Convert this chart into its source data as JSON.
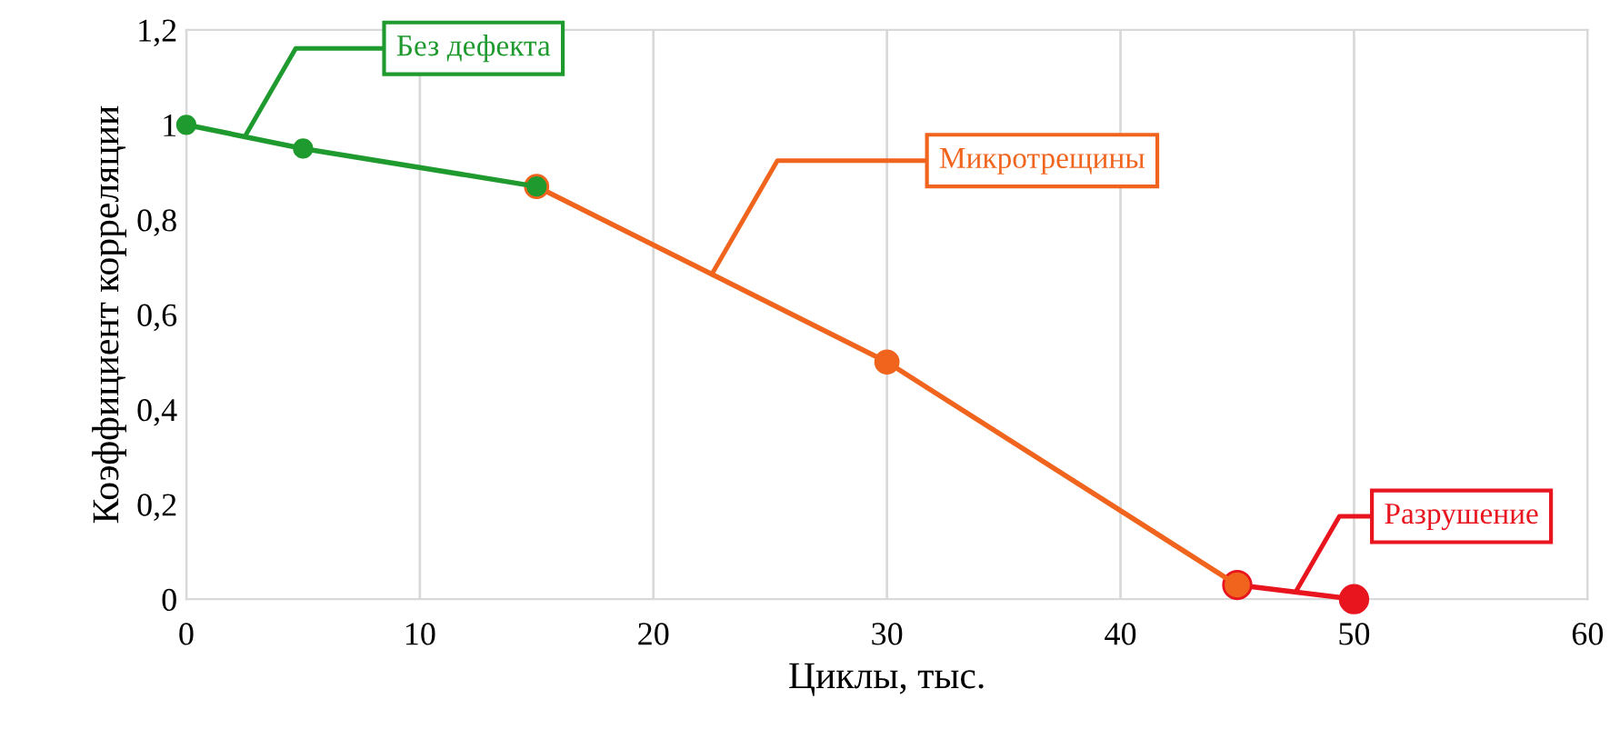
{
  "chart_data": {
    "type": "line",
    "xlabel": "Циклы, тыс.",
    "ylabel": "Коэффициент корреляции",
    "xlim": [
      0,
      60
    ],
    "xticks": [
      0,
      10,
      20,
      30,
      40,
      50,
      60
    ],
    "ylim": [
      0,
      1.2
    ],
    "yticks": [
      0,
      {
        "value": 0.2,
        "label": "0,2"
      },
      {
        "value": 0.4,
        "label": "0,4"
      },
      {
        "value": 0.6,
        "label": "0,6"
      },
      {
        "value": 0.8,
        "label": "0,8"
      },
      1,
      {
        "value": 1.2,
        "label": "1,2"
      }
    ],
    "grid": "x",
    "marker": "circle",
    "line_style": "solid",
    "series": [
      {
        "name": "Без дефекта",
        "color": "#1f9a2f",
        "x": [
          0,
          5,
          15
        ],
        "values": [
          1,
          0.95,
          0.87
        ]
      },
      {
        "name": "Микротрещины",
        "color": "#f0641e",
        "x": [
          15,
          30,
          45
        ],
        "values": [
          0.87,
          0.5,
          0.03
        ]
      },
      {
        "name": "Разрушение",
        "color": "#e8141e",
        "x": [
          45,
          50
        ],
        "values": [
          0.03,
          0
        ]
      }
    ]
  }
}
